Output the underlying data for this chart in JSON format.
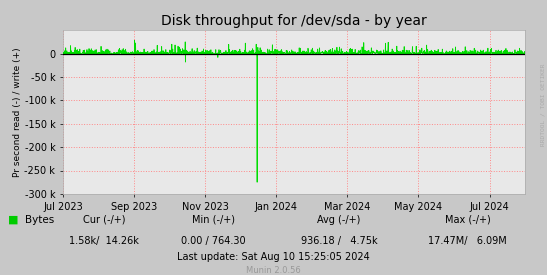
{
  "title": "Disk throughput for /dev/sda - by year",
  "ylabel": "Pr second read (-) / write (+)",
  "background_color": "#c8c8c8",
  "plot_bg_color": "#e8e8e8",
  "grid_color": "#ff8888",
  "line_color": "#00dd00",
  "zero_line_color": "#000000",
  "ylim": [
    -300000,
    50000
  ],
  "yticks": [
    0,
    -50000,
    -100000,
    -150000,
    -200000,
    -250000,
    -300000
  ],
  "ytick_labels": [
    "0",
    "-50 k",
    "-100 k",
    "-150 k",
    "-200 k",
    "-250 k",
    "-300 k"
  ],
  "xticklabels": [
    "Jul 2023",
    "Sep 2023",
    "Nov 2023",
    "Jan 2024",
    "Mar 2024",
    "May 2024",
    "Jul 2024"
  ],
  "xtick_positions": [
    0.0,
    0.1538,
    0.3077,
    0.4615,
    0.6154,
    0.7692,
    0.9231
  ],
  "legend_label": "Bytes",
  "legend_color": "#00cc00",
  "cur_label": "Cur (-/+)",
  "cur_value": "1.58k/  14.26k",
  "min_label": "Min (-/+)",
  "min_value": "0.00 / 764.30",
  "avg_label": "Avg (-/+)",
  "avg_value": "936.18 /   4.75k",
  "max_label": "Max (-/+)",
  "max_value": "17.47M/   6.09M",
  "last_update": "Last update: Sat Aug 10 15:25:05 2024",
  "munin_version": "Munin 2.0.56",
  "rrdtool_label": "RRDTOOL / TOBI OETIKER",
  "title_fontsize": 10,
  "axis_fontsize": 6.5,
  "tick_fontsize": 7,
  "legend_fontsize": 7.5,
  "stats_fontsize": 7,
  "munin_fontsize": 6
}
